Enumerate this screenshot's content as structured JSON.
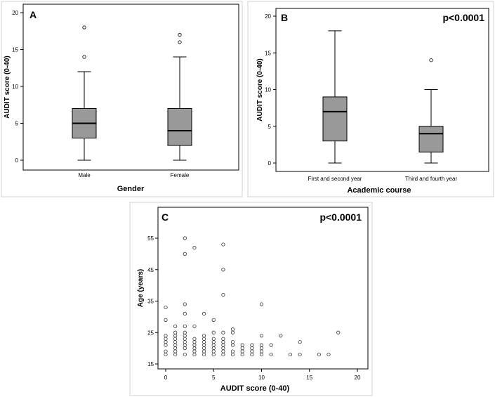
{
  "chart_data": [
    {
      "panel": "A",
      "type": "box",
      "xlabel": "Gender",
      "ylabel": "AUDIT score (0-40)",
      "ylim": [
        0,
        20
      ],
      "yticks": [
        0,
        5,
        10,
        15,
        20
      ],
      "boxes": [
        {
          "category": "Male",
          "min": 0,
          "q1": 3,
          "median": 5,
          "q3": 7,
          "max": 12,
          "outliers": [
            14,
            18
          ]
        },
        {
          "category": "Female",
          "min": 0,
          "q1": 2,
          "median": 4,
          "q3": 7,
          "max": 14,
          "outliers": [
            16,
            17
          ]
        }
      ],
      "colors": {
        "box": "#999999",
        "line": "#000000"
      }
    },
    {
      "panel": "B",
      "type": "box",
      "annotation": "p<0.0001",
      "xlabel": "Academic course",
      "ylabel": "AUDIT score (0-40)",
      "ylim": [
        0,
        20
      ],
      "yticks": [
        0,
        5,
        10,
        15,
        20
      ],
      "boxes": [
        {
          "category": "First and second year",
          "min": 0,
          "q1": 3,
          "median": 7,
          "q3": 9,
          "max": 18,
          "outliers": []
        },
        {
          "category": "Third and fourth year",
          "min": 0,
          "q1": 1.5,
          "median": 4,
          "q3": 5,
          "max": 10,
          "outliers": [
            14
          ]
        }
      ],
      "colors": {
        "box": "#999999",
        "line": "#000000"
      }
    },
    {
      "panel": "C",
      "type": "scatter",
      "annotation": "p<0.0001",
      "xlabel": "AUDIT score (0-40)",
      "ylabel": "Age (years)",
      "xlim": [
        -1,
        21
      ],
      "ylim": [
        13,
        63
      ],
      "xticks": [
        0,
        5,
        10,
        15,
        20
      ],
      "yticks": [
        15,
        25,
        35,
        45,
        55
      ],
      "points": [
        [
          0,
          18
        ],
        [
          0,
          19
        ],
        [
          0,
          21
        ],
        [
          0,
          22
        ],
        [
          0,
          23
        ],
        [
          0,
          24
        ],
        [
          0,
          29
        ],
        [
          0,
          33
        ],
        [
          1,
          18
        ],
        [
          1,
          19
        ],
        [
          1,
          20
        ],
        [
          1,
          21
        ],
        [
          1,
          22
        ],
        [
          1,
          23
        ],
        [
          1,
          24
        ],
        [
          1,
          25
        ],
        [
          1,
          27
        ],
        [
          2,
          18
        ],
        [
          2,
          20
        ],
        [
          2,
          21
        ],
        [
          2,
          22
        ],
        [
          2,
          23
        ],
        [
          2,
          24
        ],
        [
          2,
          25
        ],
        [
          2,
          27
        ],
        [
          2,
          31
        ],
        [
          2,
          34
        ],
        [
          2,
          50
        ],
        [
          2,
          55
        ],
        [
          3,
          18
        ],
        [
          3,
          19
        ],
        [
          3,
          20
        ],
        [
          3,
          21
        ],
        [
          3,
          22
        ],
        [
          3,
          23
        ],
        [
          3,
          27
        ],
        [
          3,
          52
        ],
        [
          4,
          18
        ],
        [
          4,
          19
        ],
        [
          4,
          20
        ],
        [
          4,
          21
        ],
        [
          4,
          22
        ],
        [
          4,
          23
        ],
        [
          4,
          24
        ],
        [
          4,
          31
        ],
        [
          5,
          18
        ],
        [
          5,
          19
        ],
        [
          5,
          20
        ],
        [
          5,
          21
        ],
        [
          5,
          22
        ],
        [
          5,
          23
        ],
        [
          5,
          25
        ],
        [
          5,
          29
        ],
        [
          6,
          18
        ],
        [
          6,
          19
        ],
        [
          6,
          20
        ],
        [
          6,
          21
        ],
        [
          6,
          22
        ],
        [
          6,
          23
        ],
        [
          6,
          25
        ],
        [
          6,
          37
        ],
        [
          6,
          45
        ],
        [
          6,
          53
        ],
        [
          7,
          18
        ],
        [
          7,
          19
        ],
        [
          7,
          21
        ],
        [
          7,
          22
        ],
        [
          7,
          25
        ],
        [
          7,
          26
        ],
        [
          8,
          18
        ],
        [
          8,
          19
        ],
        [
          8,
          20
        ],
        [
          8,
          21
        ],
        [
          9,
          18
        ],
        [
          9,
          19
        ],
        [
          9,
          20
        ],
        [
          9,
          21
        ],
        [
          10,
          18
        ],
        [
          10,
          19
        ],
        [
          10,
          20
        ],
        [
          10,
          21
        ],
        [
          10,
          24
        ],
        [
          10,
          34
        ],
        [
          11,
          18
        ],
        [
          11,
          21
        ],
        [
          12,
          24
        ],
        [
          13,
          18
        ],
        [
          14,
          18
        ],
        [
          14,
          22
        ],
        [
          16,
          18
        ],
        [
          17,
          18
        ],
        [
          18,
          25
        ]
      ]
    }
  ]
}
